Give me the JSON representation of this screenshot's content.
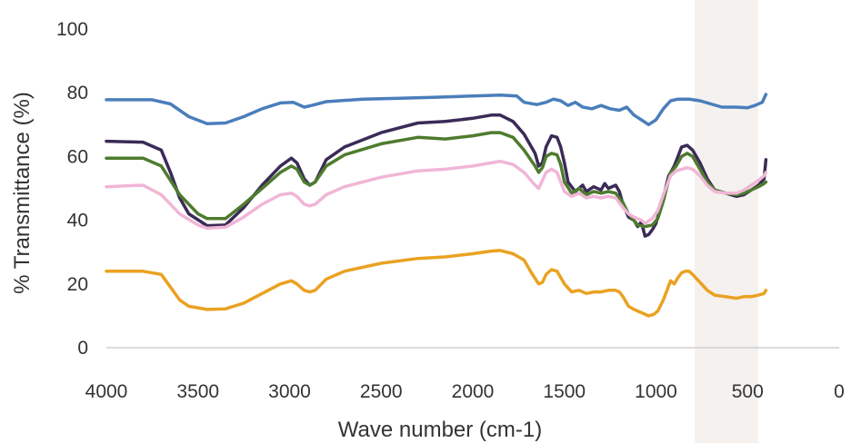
{
  "chart_data": {
    "type": "line",
    "title": "",
    "xlabel": "Wave number (cm-1)",
    "ylabel": "% Transmittance (%)",
    "xlim": [
      4000,
      0
    ],
    "ylim": [
      0,
      100
    ],
    "x_reversed": true,
    "x_ticks": [
      4000,
      3500,
      3000,
      2500,
      2000,
      1500,
      1000,
      500,
      0
    ],
    "y_ticks": [
      0,
      20,
      40,
      60,
      80,
      100
    ],
    "x_tick_labels": [
      "4000",
      "3500",
      "3000",
      "2500",
      "2000",
      "1500",
      "1000",
      "500",
      "0"
    ],
    "y_tick_labels": [
      "0",
      "20",
      "40",
      "60",
      "80",
      "100"
    ],
    "grid": false,
    "legend": "none",
    "series": [
      {
        "color": "#4a7ebb",
        "points": [
          [
            4000,
            77.8
          ],
          [
            3750,
            77.8
          ],
          [
            3650,
            76.5
          ],
          [
            3550,
            72.5
          ],
          [
            3450,
            70.3
          ],
          [
            3350,
            70.5
          ],
          [
            3250,
            72.5
          ],
          [
            3150,
            75
          ],
          [
            3050,
            76.8
          ],
          [
            2980,
            77
          ],
          [
            2920,
            75.5
          ],
          [
            2880,
            76
          ],
          [
            2800,
            77.2
          ],
          [
            2600,
            78
          ],
          [
            2400,
            78.3
          ],
          [
            2200,
            78.6
          ],
          [
            2000,
            79
          ],
          [
            1850,
            79.3
          ],
          [
            1760,
            79
          ],
          [
            1720,
            77
          ],
          [
            1650,
            76.3
          ],
          [
            1600,
            77
          ],
          [
            1560,
            78
          ],
          [
            1520,
            77.5
          ],
          [
            1480,
            76
          ],
          [
            1440,
            77
          ],
          [
            1400,
            75.5
          ],
          [
            1350,
            75
          ],
          [
            1300,
            76
          ],
          [
            1250,
            75
          ],
          [
            1200,
            74.5
          ],
          [
            1160,
            75.5
          ],
          [
            1120,
            73
          ],
          [
            1080,
            71.5
          ],
          [
            1040,
            70
          ],
          [
            1000,
            71.5
          ],
          [
            960,
            75
          ],
          [
            920,
            77.5
          ],
          [
            880,
            78
          ],
          [
            820,
            78
          ],
          [
            760,
            77.5
          ],
          [
            700,
            76.5
          ],
          [
            640,
            75.5
          ],
          [
            560,
            75.5
          ],
          [
            500,
            75.3
          ],
          [
            460,
            76
          ],
          [
            420,
            77
          ],
          [
            400,
            79.5
          ]
        ]
      },
      {
        "color": "#3b2b57",
        "points": [
          [
            4000,
            64.8
          ],
          [
            3800,
            64.5
          ],
          [
            3700,
            62
          ],
          [
            3650,
            55
          ],
          [
            3600,
            47
          ],
          [
            3550,
            42
          ],
          [
            3450,
            38.3
          ],
          [
            3350,
            38.5
          ],
          [
            3250,
            44
          ],
          [
            3150,
            51
          ],
          [
            3050,
            57
          ],
          [
            2990,
            59.5
          ],
          [
            2960,
            58
          ],
          [
            2920,
            53
          ],
          [
            2890,
            51
          ],
          [
            2860,
            52
          ],
          [
            2800,
            59
          ],
          [
            2700,
            63
          ],
          [
            2500,
            67.5
          ],
          [
            2300,
            70.5
          ],
          [
            2150,
            71
          ],
          [
            2000,
            72
          ],
          [
            1900,
            73
          ],
          [
            1850,
            73
          ],
          [
            1780,
            71
          ],
          [
            1720,
            67
          ],
          [
            1660,
            61
          ],
          [
            1640,
            57
          ],
          [
            1620,
            58
          ],
          [
            1600,
            63
          ],
          [
            1570,
            66.5
          ],
          [
            1540,
            66
          ],
          [
            1520,
            63
          ],
          [
            1500,
            58
          ],
          [
            1480,
            52
          ],
          [
            1440,
            49
          ],
          [
            1400,
            51
          ],
          [
            1380,
            49
          ],
          [
            1340,
            50.5
          ],
          [
            1300,
            49.5
          ],
          [
            1280,
            51.5
          ],
          [
            1260,
            50
          ],
          [
            1220,
            51
          ],
          [
            1200,
            49
          ],
          [
            1180,
            45
          ],
          [
            1150,
            41
          ],
          [
            1120,
            40
          ],
          [
            1100,
            38
          ],
          [
            1080,
            39.5
          ],
          [
            1060,
            35
          ],
          [
            1040,
            35.5
          ],
          [
            1020,
            37
          ],
          [
            1000,
            39
          ],
          [
            970,
            45
          ],
          [
            930,
            54
          ],
          [
            900,
            57
          ],
          [
            880,
            60
          ],
          [
            860,
            63
          ],
          [
            830,
            63.5
          ],
          [
            800,
            62
          ],
          [
            760,
            58
          ],
          [
            720,
            53
          ],
          [
            680,
            49.5
          ],
          [
            620,
            48.5
          ],
          [
            560,
            47.5
          ],
          [
            520,
            48
          ],
          [
            480,
            49.5
          ],
          [
            440,
            51
          ],
          [
            410,
            53
          ],
          [
            400,
            59
          ]
        ]
      },
      {
        "color": "#4e7b2e",
        "points": [
          [
            4000,
            59.5
          ],
          [
            3800,
            59.5
          ],
          [
            3700,
            57
          ],
          [
            3600,
            48
          ],
          [
            3500,
            42
          ],
          [
            3450,
            40.5
          ],
          [
            3350,
            40.5
          ],
          [
            3250,
            45
          ],
          [
            3150,
            50
          ],
          [
            3050,
            55
          ],
          [
            2990,
            57
          ],
          [
            2960,
            56
          ],
          [
            2920,
            52
          ],
          [
            2890,
            51
          ],
          [
            2860,
            52
          ],
          [
            2800,
            57
          ],
          [
            2700,
            60.5
          ],
          [
            2500,
            64
          ],
          [
            2300,
            66
          ],
          [
            2150,
            65.5
          ],
          [
            2000,
            66.5
          ],
          [
            1900,
            67.5
          ],
          [
            1850,
            67.5
          ],
          [
            1780,
            66
          ],
          [
            1720,
            62
          ],
          [
            1660,
            57
          ],
          [
            1640,
            55
          ],
          [
            1620,
            56.5
          ],
          [
            1600,
            60
          ],
          [
            1570,
            61
          ],
          [
            1540,
            60.5
          ],
          [
            1520,
            57.5
          ],
          [
            1500,
            52
          ],
          [
            1460,
            48.5
          ],
          [
            1420,
            50
          ],
          [
            1380,
            48
          ],
          [
            1340,
            49
          ],
          [
            1300,
            48.5
          ],
          [
            1260,
            49
          ],
          [
            1220,
            48.5
          ],
          [
            1180,
            45.5
          ],
          [
            1150,
            42
          ],
          [
            1100,
            38.5
          ],
          [
            1060,
            38
          ],
          [
            1020,
            38.5
          ],
          [
            990,
            40.5
          ],
          [
            960,
            46
          ],
          [
            920,
            55
          ],
          [
            890,
            57
          ],
          [
            860,
            60
          ],
          [
            830,
            61
          ],
          [
            800,
            60
          ],
          [
            760,
            56
          ],
          [
            720,
            52
          ],
          [
            680,
            49.5
          ],
          [
            620,
            48.5
          ],
          [
            560,
            48
          ],
          [
            520,
            48.5
          ],
          [
            480,
            49.5
          ],
          [
            440,
            50.5
          ],
          [
            410,
            51.5
          ],
          [
            400,
            52
          ]
        ]
      },
      {
        "color": "#f0b6d6",
        "points": [
          [
            4000,
            50.5
          ],
          [
            3800,
            51
          ],
          [
            3700,
            48
          ],
          [
            3600,
            42
          ],
          [
            3500,
            38.5
          ],
          [
            3450,
            37.5
          ],
          [
            3350,
            37.8
          ],
          [
            3250,
            41
          ],
          [
            3150,
            45
          ],
          [
            3050,
            48
          ],
          [
            2990,
            48.5
          ],
          [
            2960,
            47.5
          ],
          [
            2920,
            45
          ],
          [
            2890,
            44.5
          ],
          [
            2860,
            45
          ],
          [
            2800,
            48
          ],
          [
            2700,
            50.5
          ],
          [
            2500,
            53.5
          ],
          [
            2300,
            55.5
          ],
          [
            2150,
            56
          ],
          [
            2000,
            57
          ],
          [
            1900,
            58
          ],
          [
            1850,
            58.5
          ],
          [
            1780,
            57.5
          ],
          [
            1720,
            55
          ],
          [
            1660,
            51
          ],
          [
            1640,
            50
          ],
          [
            1620,
            52.5
          ],
          [
            1600,
            55
          ],
          [
            1570,
            56
          ],
          [
            1540,
            55
          ],
          [
            1520,
            52
          ],
          [
            1500,
            49
          ],
          [
            1460,
            47.5
          ],
          [
            1420,
            48.5
          ],
          [
            1380,
            47
          ],
          [
            1340,
            47.5
          ],
          [
            1300,
            47
          ],
          [
            1260,
            47.5
          ],
          [
            1220,
            47
          ],
          [
            1180,
            44
          ],
          [
            1150,
            42
          ],
          [
            1120,
            41
          ],
          [
            1080,
            40
          ],
          [
            1060,
            39
          ],
          [
            1020,
            40.5
          ],
          [
            990,
            43
          ],
          [
            960,
            48
          ],
          [
            920,
            54
          ],
          [
            890,
            55.5
          ],
          [
            860,
            56
          ],
          [
            830,
            56.5
          ],
          [
            800,
            56
          ],
          [
            760,
            54
          ],
          [
            720,
            51
          ],
          [
            680,
            49
          ],
          [
            620,
            48.5
          ],
          [
            560,
            48.5
          ],
          [
            520,
            49.5
          ],
          [
            480,
            51
          ],
          [
            440,
            52.5
          ],
          [
            410,
            54
          ],
          [
            400,
            55
          ]
        ]
      },
      {
        "color": "#eaa221",
        "points": [
          [
            4000,
            24
          ],
          [
            3800,
            24
          ],
          [
            3700,
            23
          ],
          [
            3650,
            19
          ],
          [
            3600,
            15
          ],
          [
            3550,
            13
          ],
          [
            3450,
            12
          ],
          [
            3350,
            12.2
          ],
          [
            3250,
            14
          ],
          [
            3150,
            17
          ],
          [
            3050,
            20
          ],
          [
            2990,
            21
          ],
          [
            2960,
            20
          ],
          [
            2920,
            18
          ],
          [
            2890,
            17.5
          ],
          [
            2860,
            18
          ],
          [
            2800,
            21.5
          ],
          [
            2700,
            24
          ],
          [
            2500,
            26.5
          ],
          [
            2300,
            28
          ],
          [
            2150,
            28.5
          ],
          [
            2000,
            29.5
          ],
          [
            1900,
            30.3
          ],
          [
            1850,
            30.5
          ],
          [
            1780,
            29.5
          ],
          [
            1720,
            27.5
          ],
          [
            1680,
            23.5
          ],
          [
            1640,
            20
          ],
          [
            1620,
            20.5
          ],
          [
            1600,
            23
          ],
          [
            1570,
            24.5
          ],
          [
            1540,
            24
          ],
          [
            1520,
            22
          ],
          [
            1500,
            20
          ],
          [
            1460,
            17.5
          ],
          [
            1420,
            18
          ],
          [
            1380,
            17
          ],
          [
            1340,
            17.5
          ],
          [
            1300,
            17.5
          ],
          [
            1260,
            18
          ],
          [
            1220,
            18
          ],
          [
            1200,
            17.5
          ],
          [
            1180,
            16
          ],
          [
            1150,
            13
          ],
          [
            1120,
            12
          ],
          [
            1080,
            11
          ],
          [
            1040,
            10
          ],
          [
            1010,
            10.5
          ],
          [
            990,
            11.5
          ],
          [
            960,
            15
          ],
          [
            920,
            21
          ],
          [
            900,
            20
          ],
          [
            880,
            22
          ],
          [
            860,
            23.5
          ],
          [
            840,
            24
          ],
          [
            820,
            24
          ],
          [
            800,
            23
          ],
          [
            760,
            20.5
          ],
          [
            720,
            18
          ],
          [
            680,
            16.5
          ],
          [
            620,
            16
          ],
          [
            560,
            15.5
          ],
          [
            520,
            16
          ],
          [
            480,
            16
          ],
          [
            440,
            16.5
          ],
          [
            410,
            17
          ],
          [
            400,
            18
          ]
        ]
      }
    ]
  }
}
